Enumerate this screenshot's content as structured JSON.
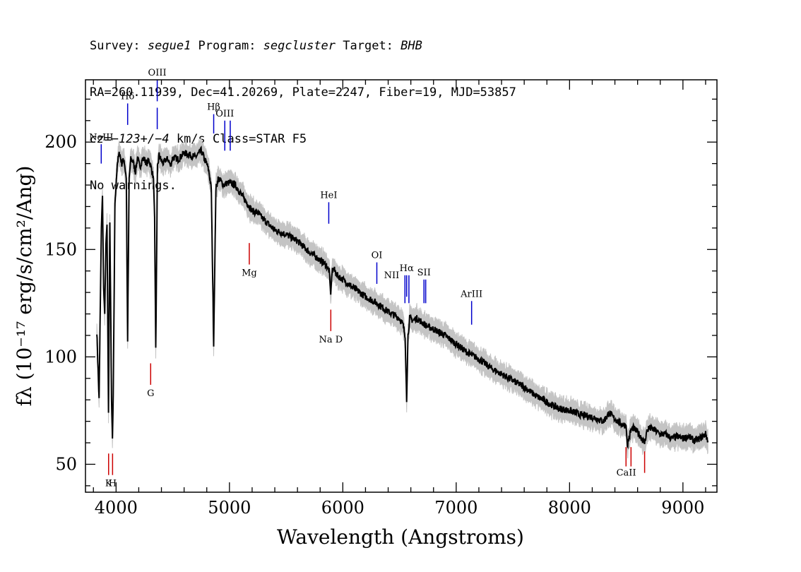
{
  "header": {
    "line1": {
      "survey_label": "Survey: ",
      "survey": "segue1",
      "program_label": " Program: ",
      "program": "segcluster",
      "target_label": " Target: ",
      "target": "BHB"
    },
    "line2": "RA=260.11939, Dec=41.20269, Plate=2247, Fiber=19, MJD=53857",
    "line3": {
      "cz": "cz=−123+/−4",
      "rest": " km/s Class=STAR F5"
    },
    "line4": "No warnings."
  },
  "chart_data": {
    "type": "line",
    "title": "",
    "xlabel": "Wavelength (Angstroms)",
    "ylabel": "fλ (10⁻¹⁷ erg/s/cm²/Ang)",
    "xlim": [
      3730,
      9300
    ],
    "ylim": [
      37,
      229
    ],
    "x_ticks": [
      4000,
      5000,
      6000,
      7000,
      8000,
      9000
    ],
    "y_ticks": [
      50,
      100,
      150,
      200
    ],
    "grid": false,
    "colors": {
      "flux": "#000000",
      "error_band": "#c4c4c4",
      "emission": "#0000cc",
      "absorption": "#cc0000"
    },
    "series": [
      {
        "x": [
          3830,
          3850,
          3870,
          3880,
          3890,
          3900,
          3910,
          3920,
          3933,
          3945,
          3960,
          3968,
          3975,
          3990,
          4010,
          4030,
          4050,
          4070,
          4090,
          4102,
          4115,
          4130,
          4150,
          4170,
          4190,
          4210,
          4230,
          4250,
          4270,
          4290,
          4310,
          4330,
          4340,
          4350,
          4365,
          4380,
          4400,
          4420,
          4440,
          4460,
          4480,
          4500,
          4550,
          4600,
          4650,
          4700,
          4750,
          4780,
          4800,
          4820,
          4840,
          4861,
          4880,
          4900,
          4920,
          4950,
          4980,
          5000,
          5050,
          5100,
          5150,
          5200,
          5250,
          5300,
          5400,
          5500,
          5600,
          5700,
          5800,
          5850,
          5880,
          5893,
          5905,
          5920,
          5950,
          6000,
          6100,
          6200,
          6300,
          6400,
          6500,
          6530,
          6550,
          6563,
          6575,
          6590,
          6620,
          6650,
          6700,
          6750,
          6800,
          6900,
          7000,
          7100,
          7200,
          7300,
          7400,
          7500,
          7600,
          7700,
          7800,
          7900,
          8000,
          8100,
          8200,
          8300,
          8350,
          8400,
          8450,
          8498,
          8510,
          8542,
          8560,
          8600,
          8662,
          8680,
          8700,
          8750,
          8800,
          8850,
          8900,
          8950,
          9000,
          9050,
          9100,
          9150,
          9200,
          9220
        ],
        "values": [
          112,
          80,
          160,
          175,
          132,
          120,
          152,
          162,
          74,
          162,
          80,
          62,
          82,
          170,
          190,
          195,
          190,
          192,
          183,
          108,
          183,
          192,
          191,
          186,
          193,
          188,
          192,
          192,
          190,
          192,
          188,
          183,
          165,
          103,
          188,
          194,
          191,
          190,
          192,
          192,
          189,
          193,
          192,
          195,
          194,
          193,
          196,
          192,
          190,
          186,
          178,
          106,
          178,
          183,
          182,
          180,
          181,
          181,
          180,
          176,
          172,
          168,
          167,
          164,
          159,
          157,
          154,
          149,
          145,
          143,
          140,
          129,
          140,
          141,
          138,
          136,
          132,
          128,
          125,
          121,
          118,
          115,
          110,
          79,
          110,
          118,
          117,
          118,
          116,
          114,
          113,
          110,
          106,
          102,
          99,
          95,
          92,
          89,
          86,
          82,
          79,
          76,
          75,
          73,
          72,
          70,
          74,
          71,
          69,
          68,
          59,
          66,
          67,
          65,
          60,
          65,
          67,
          66,
          64,
          64,
          62,
          63,
          62,
          63,
          61,
          62,
          64,
          61
        ],
        "error": 4.5
      }
    ],
    "spectral_lines": [
      {
        "label": "NeIII",
        "x": 3869,
        "kind": "emission",
        "y0": 190,
        "y1": 199,
        "label_side": "above"
      },
      {
        "label": "Hδ",
        "x": 4102,
        "kind": "emission",
        "y0": 208,
        "y1": 218,
        "label_side": "above"
      },
      {
        "label": "OIII",
        "x": 4363,
        "kind": "emission",
        "y0": 219,
        "y1": 229,
        "label_side": "above"
      },
      {
        "label": "OIII",
        "x": 4363,
        "kind": "emission",
        "y0": 206,
        "y1": 216,
        "label_side": "none"
      },
      {
        "label": "Hβ",
        "x": 4861,
        "kind": "emission",
        "y0": 204,
        "y1": 213,
        "label_side": "above"
      },
      {
        "label": "OIII",
        "x": 4959,
        "kind": "emission",
        "y0": 196,
        "y1": 210,
        "label_side": "above"
      },
      {
        "label": "",
        "x": 5007,
        "kind": "emission",
        "y0": 196,
        "y1": 210,
        "label_side": "none"
      },
      {
        "label": "HeI",
        "x": 5876,
        "kind": "emission",
        "y0": 162,
        "y1": 172,
        "label_side": "above"
      },
      {
        "label": "OI",
        "x": 6300,
        "kind": "emission",
        "y0": 134,
        "y1": 144,
        "label_side": "above"
      },
      {
        "label": "NII",
        "x": 6548,
        "kind": "emission",
        "y0": 125,
        "y1": 138,
        "label_side": "left"
      },
      {
        "label": "Hα",
        "x": 6563,
        "kind": "emission",
        "y0": 128,
        "y1": 138,
        "label_side": "above"
      },
      {
        "label": "",
        "x": 6583,
        "kind": "emission",
        "y0": 125,
        "y1": 138,
        "label_side": "none"
      },
      {
        "label": "SII",
        "x": 6716,
        "kind": "emission",
        "y0": 125,
        "y1": 136,
        "label_side": "above"
      },
      {
        "label": "",
        "x": 6731,
        "kind": "emission",
        "y0": 125,
        "y1": 136,
        "label_side": "none"
      },
      {
        "label": "ArIII",
        "x": 7136,
        "kind": "emission",
        "y0": 115,
        "y1": 126,
        "label_side": "above"
      },
      {
        "label": "K",
        "x": 3934,
        "kind": "absorption",
        "y0": 45,
        "y1": 55,
        "label_side": "below"
      },
      {
        "label": "H",
        "x": 3969,
        "kind": "absorption",
        "y0": 45,
        "y1": 55,
        "label_side": "below"
      },
      {
        "label": "G",
        "x": 4305,
        "kind": "absorption",
        "y0": 87,
        "y1": 97,
        "label_side": "below"
      },
      {
        "label": "Mg",
        "x": 5175,
        "kind": "absorption",
        "y0": 143,
        "y1": 153,
        "label_side": "below"
      },
      {
        "label": "Na D",
        "x": 5894,
        "kind": "absorption",
        "y0": 112,
        "y1": 122,
        "label_side": "below"
      },
      {
        "label": "CaII",
        "x": 8498,
        "kind": "absorption",
        "y0": 49,
        "y1": 58,
        "label_side": "none"
      },
      {
        "label": "",
        "x": 8542,
        "kind": "absorption",
        "y0": 49,
        "y1": 58,
        "label_side": "none"
      },
      {
        "label": "CaII",
        "x": 8662,
        "kind": "absorption",
        "y0": 46,
        "y1": 56,
        "label_side": "below-left"
      }
    ]
  }
}
